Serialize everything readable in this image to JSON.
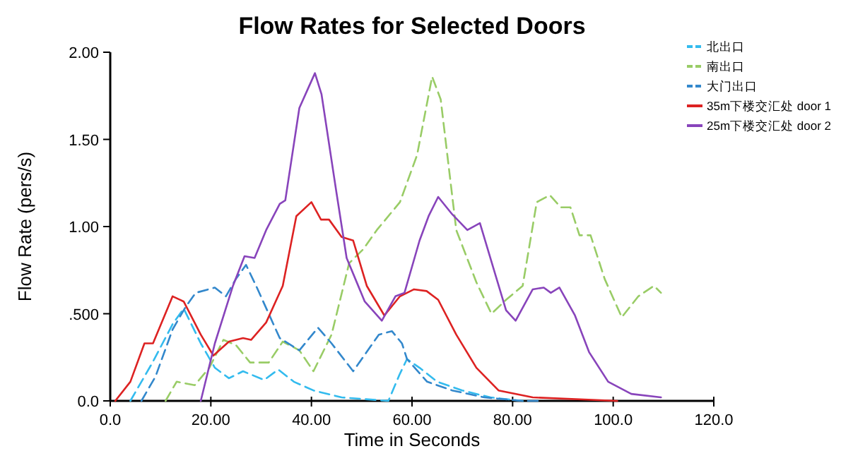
{
  "chart_data": {
    "type": "line",
    "title": "Flow Rates for Selected Doors",
    "xlabel": "Time in Seconds",
    "ylabel": "Flow Rate (pers/s)",
    "xlim": [
      0,
      120
    ],
    "ylim": [
      0,
      2
    ],
    "xticks": [
      {
        "value": 0,
        "label": "0.0"
      },
      {
        "value": 20,
        "label": "20.00"
      },
      {
        "value": 40,
        "label": "40.00"
      },
      {
        "value": 60,
        "label": "60.00"
      },
      {
        "value": 80,
        "label": "80.00"
      },
      {
        "value": 100,
        "label": "100.0"
      },
      {
        "value": 120,
        "label": "120.0"
      }
    ],
    "yticks": [
      {
        "value": 0,
        "label": "0.0"
      },
      {
        "value": 0.5,
        "label": ".500"
      },
      {
        "value": 1,
        "label": "1.00"
      },
      {
        "value": 1.5,
        "label": "1.50"
      },
      {
        "value": 2,
        "label": "2.00"
      }
    ],
    "grid": false,
    "legend": "top right",
    "marker": "none",
    "series": [
      {
        "name": "北出口",
        "color": "#33bbee",
        "line_style": "dashed",
        "x": [
          4,
          8.4,
          12.4,
          14.6,
          18,
          20.8,
          23.6,
          26.4,
          30.6,
          33.4,
          36.5,
          40.4,
          46,
          55.3,
          57.5,
          59,
          61.5,
          65,
          70,
          75.6,
          82
        ],
        "values": [
          0,
          0.22,
          0.44,
          0.53,
          0.33,
          0.19,
          0.13,
          0.17,
          0.12,
          0.18,
          0.11,
          0.06,
          0.02,
          0,
          0.15,
          0.24,
          0.19,
          0.11,
          0.06,
          0.02,
          0
        ]
      },
      {
        "name": "南出口",
        "color": "#99cc66",
        "line_style": "dashed",
        "x": [
          11,
          13.2,
          16.8,
          19.7,
          22.5,
          25,
          27.8,
          31.5,
          34.3,
          37.6,
          40.4,
          44,
          47.5,
          50.3,
          53,
          57.6,
          61,
          64,
          65.7,
          68.8,
          72.8,
          75.8,
          78.7,
          82,
          84.8,
          87.4,
          89.6,
          91.5,
          93.3,
          95.5,
          98.3,
          101.7,
          105,
          108.1,
          109.5
        ],
        "values": [
          0,
          0.11,
          0.09,
          0.19,
          0.35,
          0.32,
          0.22,
          0.22,
          0.34,
          0.29,
          0.17,
          0.38,
          0.79,
          0.87,
          0.98,
          1.14,
          1.41,
          1.86,
          1.73,
          0.98,
          0.68,
          0.5,
          0.58,
          0.66,
          1.14,
          1.18,
          1.11,
          1.11,
          0.95,
          0.95,
          0.7,
          0.48,
          0.6,
          0.66,
          0.62
        ]
      },
      {
        "name": "大门出口",
        "color": "#3388cc",
        "line_style": "dashed",
        "x": [
          6.2,
          9,
          12.4,
          15,
          17,
          20.8,
          23,
          25,
          27,
          29,
          33.7,
          37.6,
          41.3,
          44,
          48.3,
          53.4,
          56,
          58,
          59,
          63,
          68,
          74.4,
          82,
          85
        ],
        "values": [
          0,
          0.14,
          0.41,
          0.54,
          0.62,
          0.65,
          0.6,
          0.7,
          0.78,
          0.66,
          0.36,
          0.29,
          0.42,
          0.33,
          0.17,
          0.38,
          0.4,
          0.33,
          0.24,
          0.11,
          0.06,
          0.02,
          0,
          0
        ]
      },
      {
        "name": "35m下楼交汇处 door 1",
        "color": "#dd2222",
        "line_style": "solid",
        "x": [
          1,
          4,
          6.8,
          8.5,
          12.4,
          14.6,
          18,
          20.5,
          23.6,
          26.4,
          28,
          31,
          34.3,
          37,
          40,
          41.9,
          43.5,
          46,
          48.3,
          51,
          54.5,
          57.6,
          60.4,
          62.9,
          65.2,
          68.8,
          72.8,
          77.2,
          84,
          100.8
        ],
        "values": [
          0,
          0.11,
          0.33,
          0.33,
          0.6,
          0.57,
          0.38,
          0.26,
          0.34,
          0.36,
          0.35,
          0.45,
          0.66,
          1.06,
          1.14,
          1.04,
          1.04,
          0.94,
          0.92,
          0.66,
          0.49,
          0.6,
          0.64,
          0.63,
          0.58,
          0.38,
          0.19,
          0.06,
          0.02,
          0
        ]
      },
      {
        "name": "25m下楼交汇处 door 2",
        "color": "#8844bb",
        "line_style": "solid",
        "x": [
          18,
          20.8,
          24.4,
          26.7,
          28.7,
          31,
          33.7,
          34.8,
          37.6,
          39.3,
          40.7,
          42,
          45,
          47,
          50.6,
          54,
          56.7,
          58.5,
          61.5,
          63.3,
          65.2,
          68,
          71,
          73.5,
          76.4,
          78.7,
          80.6,
          84,
          86.2,
          87.6,
          89.3,
          92.4,
          95.2,
          99,
          103.6,
          109.5
        ],
        "values": [
          0,
          0.33,
          0.66,
          0.83,
          0.82,
          0.98,
          1.13,
          1.15,
          1.68,
          1.79,
          1.88,
          1.76,
          1.19,
          0.82,
          0.57,
          0.46,
          0.6,
          0.62,
          0.92,
          1.06,
          1.17,
          1.07,
          0.98,
          1.02,
          0.74,
          0.52,
          0.46,
          0.64,
          0.65,
          0.62,
          0.65,
          0.49,
          0.28,
          0.11,
          0.04,
          0.02
        ]
      }
    ]
  }
}
